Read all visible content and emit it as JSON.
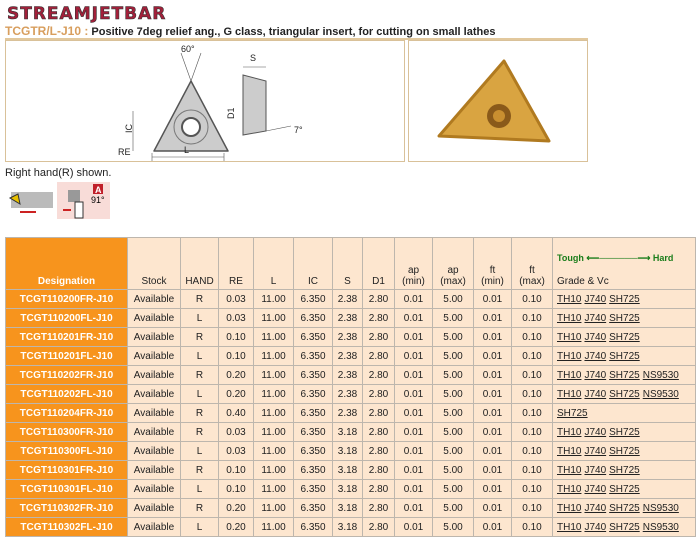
{
  "brand": {
    "logo": "STREAMJETBAR"
  },
  "header": {
    "code": "TCGTR/L-J10 :",
    "description": "Positive 7deg relief ang., G class, triangular insert, for cutting on small lathes"
  },
  "drawing": {
    "angle_top": "60°",
    "label_ic": "IC",
    "label_re": "RE",
    "label_l": "L",
    "label_s": "S",
    "label_d1": "D1",
    "angle_relief": "7°"
  },
  "note": "Right hand(R) shown.",
  "tool_icon": {
    "badge": "A",
    "angle": "91°"
  },
  "colors": {
    "designation": "#f7941d",
    "cell": "#fde6cf",
    "scale": "#1a7d1a"
  },
  "table": {
    "headers": {
      "designation": "Designation",
      "stock": "Stock",
      "hand": "HAND",
      "re": "RE",
      "l": "L",
      "ic": "IC",
      "s": "S",
      "d1": "D1",
      "ap_min_1": "ap",
      "ap_min_2": "(min)",
      "ap_max_1": "ap",
      "ap_max_2": "(max)",
      "ft_min_1": "ft",
      "ft_min_2": "(min)",
      "ft_max_1": "ft",
      "ft_max_2": "(max)",
      "scale_left": "Tough",
      "scale_right": "Hard",
      "grade": "Grade & Vc"
    },
    "rows": [
      {
        "designation": "TCGT110200FR-J10",
        "stock": "Available",
        "hand": "R",
        "re": "0.03",
        "l": "11.00",
        "ic": "6.350",
        "s": "2.38",
        "d1": "2.80",
        "ap_min": "0.01",
        "ap_max": "5.00",
        "ft_min": "0.01",
        "ft_max": "0.10",
        "grades": [
          "TH10",
          "J740",
          "SH725"
        ]
      },
      {
        "designation": "TCGT110200FL-J10",
        "stock": "Available",
        "hand": "L",
        "re": "0.03",
        "l": "11.00",
        "ic": "6.350",
        "s": "2.38",
        "d1": "2.80",
        "ap_min": "0.01",
        "ap_max": "5.00",
        "ft_min": "0.01",
        "ft_max": "0.10",
        "grades": [
          "TH10",
          "J740",
          "SH725"
        ]
      },
      {
        "designation": "TCGT110201FR-J10",
        "stock": "Available",
        "hand": "R",
        "re": "0.10",
        "l": "11.00",
        "ic": "6.350",
        "s": "2.38",
        "d1": "2.80",
        "ap_min": "0.01",
        "ap_max": "5.00",
        "ft_min": "0.01",
        "ft_max": "0.10",
        "grades": [
          "TH10",
          "J740",
          "SH725"
        ]
      },
      {
        "designation": "TCGT110201FL-J10",
        "stock": "Available",
        "hand": "L",
        "re": "0.10",
        "l": "11.00",
        "ic": "6.350",
        "s": "2.38",
        "d1": "2.80",
        "ap_min": "0.01",
        "ap_max": "5.00",
        "ft_min": "0.01",
        "ft_max": "0.10",
        "grades": [
          "TH10",
          "J740",
          "SH725"
        ]
      },
      {
        "designation": "TCGT110202FR-J10",
        "stock": "Available",
        "hand": "R",
        "re": "0.20",
        "l": "11.00",
        "ic": "6.350",
        "s": "2.38",
        "d1": "2.80",
        "ap_min": "0.01",
        "ap_max": "5.00",
        "ft_min": "0.01",
        "ft_max": "0.10",
        "grades": [
          "TH10",
          "J740",
          "SH725",
          "NS9530"
        ]
      },
      {
        "designation": "TCGT110202FL-J10",
        "stock": "Available",
        "hand": "L",
        "re": "0.20",
        "l": "11.00",
        "ic": "6.350",
        "s": "2.38",
        "d1": "2.80",
        "ap_min": "0.01",
        "ap_max": "5.00",
        "ft_min": "0.01",
        "ft_max": "0.10",
        "grades": [
          "TH10",
          "J740",
          "SH725",
          "NS9530"
        ]
      },
      {
        "designation": "TCGT110204FR-J10",
        "stock": "Available",
        "hand": "R",
        "re": "0.40",
        "l": "11.00",
        "ic": "6.350",
        "s": "2.38",
        "d1": "2.80",
        "ap_min": "0.01",
        "ap_max": "5.00",
        "ft_min": "0.01",
        "ft_max": "0.10",
        "grades": [
          "SH725"
        ]
      },
      {
        "designation": "TCGT110300FR-J10",
        "stock": "Available",
        "hand": "R",
        "re": "0.03",
        "l": "11.00",
        "ic": "6.350",
        "s": "3.18",
        "d1": "2.80",
        "ap_min": "0.01",
        "ap_max": "5.00",
        "ft_min": "0.01",
        "ft_max": "0.10",
        "grades": [
          "TH10",
          "J740",
          "SH725"
        ]
      },
      {
        "designation": "TCGT110300FL-J10",
        "stock": "Available",
        "hand": "L",
        "re": "0.03",
        "l": "11.00",
        "ic": "6.350",
        "s": "3.18",
        "d1": "2.80",
        "ap_min": "0.01",
        "ap_max": "5.00",
        "ft_min": "0.01",
        "ft_max": "0.10",
        "grades": [
          "TH10",
          "J740",
          "SH725"
        ]
      },
      {
        "designation": "TCGT110301FR-J10",
        "stock": "Available",
        "hand": "R",
        "re": "0.10",
        "l": "11.00",
        "ic": "6.350",
        "s": "3.18",
        "d1": "2.80",
        "ap_min": "0.01",
        "ap_max": "5.00",
        "ft_min": "0.01",
        "ft_max": "0.10",
        "grades": [
          "TH10",
          "J740",
          "SH725"
        ]
      },
      {
        "designation": "TCGT110301FL-J10",
        "stock": "Available",
        "hand": "L",
        "re": "0.10",
        "l": "11.00",
        "ic": "6.350",
        "s": "3.18",
        "d1": "2.80",
        "ap_min": "0.01",
        "ap_max": "5.00",
        "ft_min": "0.01",
        "ft_max": "0.10",
        "grades": [
          "TH10",
          "J740",
          "SH725"
        ]
      },
      {
        "designation": "TCGT110302FR-J10",
        "stock": "Available",
        "hand": "R",
        "re": "0.20",
        "l": "11.00",
        "ic": "6.350",
        "s": "3.18",
        "d1": "2.80",
        "ap_min": "0.01",
        "ap_max": "5.00",
        "ft_min": "0.01",
        "ft_max": "0.10",
        "grades": [
          "TH10",
          "J740",
          "SH725",
          "NS9530"
        ]
      },
      {
        "designation": "TCGT110302FL-J10",
        "stock": "Available",
        "hand": "L",
        "re": "0.20",
        "l": "11.00",
        "ic": "6.350",
        "s": "3.18",
        "d1": "2.80",
        "ap_min": "0.01",
        "ap_max": "5.00",
        "ft_min": "0.01",
        "ft_max": "0.10",
        "grades": [
          "TH10",
          "J740",
          "SH725",
          "NS9530"
        ]
      }
    ]
  }
}
